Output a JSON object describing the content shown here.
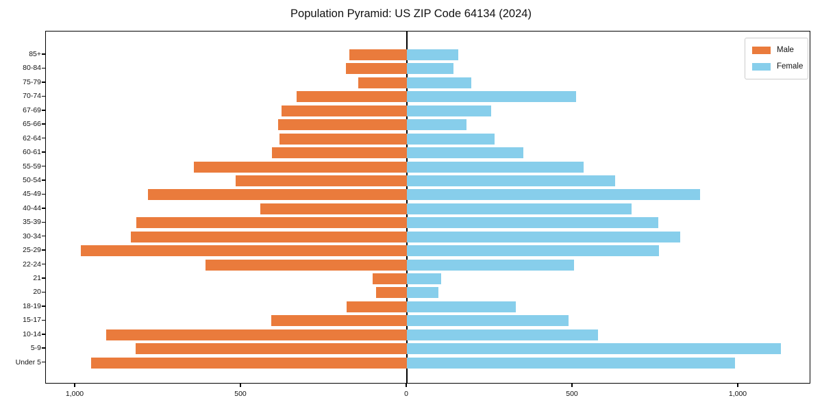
{
  "title": "Population Pyramid: US ZIP Code 64134 (2024)",
  "legend": {
    "position": "upper-right",
    "items": [
      {
        "label": "Male",
        "color": "#EA7B3C"
      },
      {
        "label": "Female",
        "color": "#87CEEB"
      }
    ]
  },
  "colors": {
    "male": "#EA7B3C",
    "female": "#87CEEB",
    "axis": "#000000",
    "legend_border": "#cccccc",
    "background": "#ffffff"
  },
  "x_axis": {
    "tick_labels": [
      "1,000",
      "500",
      "0",
      "500",
      "1,000"
    ],
    "tick_values": [
      -1000,
      -500,
      0,
      500,
      1000
    ]
  },
  "chart_data": {
    "type": "bar",
    "orientation": "horizontal-population-pyramid",
    "title": "Population Pyramid: US ZIP Code 64134 (2024)",
    "xlabel": "",
    "ylabel": "",
    "xlim": [
      -1225,
      1225
    ],
    "grid": false,
    "legend_position": "upper-right",
    "categories_top_to_bottom": [
      "85+",
      "80-84",
      "75-79",
      "70-74",
      "67-69",
      "65-66",
      "62-64",
      "60-61",
      "55-59",
      "50-54",
      "45-49",
      "40-44",
      "35-39",
      "30-34",
      "25-29",
      "22-24",
      "21",
      "20",
      "18-19",
      "15-17",
      "10-14",
      "5-9",
      "Under 5"
    ],
    "series": [
      {
        "name": "Male",
        "side": "left",
        "color": "#EA7B3C",
        "values": [
          174,
          183,
          147,
          333,
          379,
          389,
          385,
          407,
          642,
          516,
          782,
          442,
          817,
          833,
          983,
          607,
          103,
          94,
          181,
          409,
          907,
          819,
          953
        ]
      },
      {
        "name": "Female",
        "side": "right",
        "color": "#87CEEB",
        "values": [
          154,
          141,
          195,
          511,
          254,
          179,
          264,
          351,
          532,
          629,
          885,
          677,
          758,
          824,
          760,
          504,
          104,
          94,
          328,
          487,
          577,
          1127,
          990
        ]
      }
    ]
  }
}
